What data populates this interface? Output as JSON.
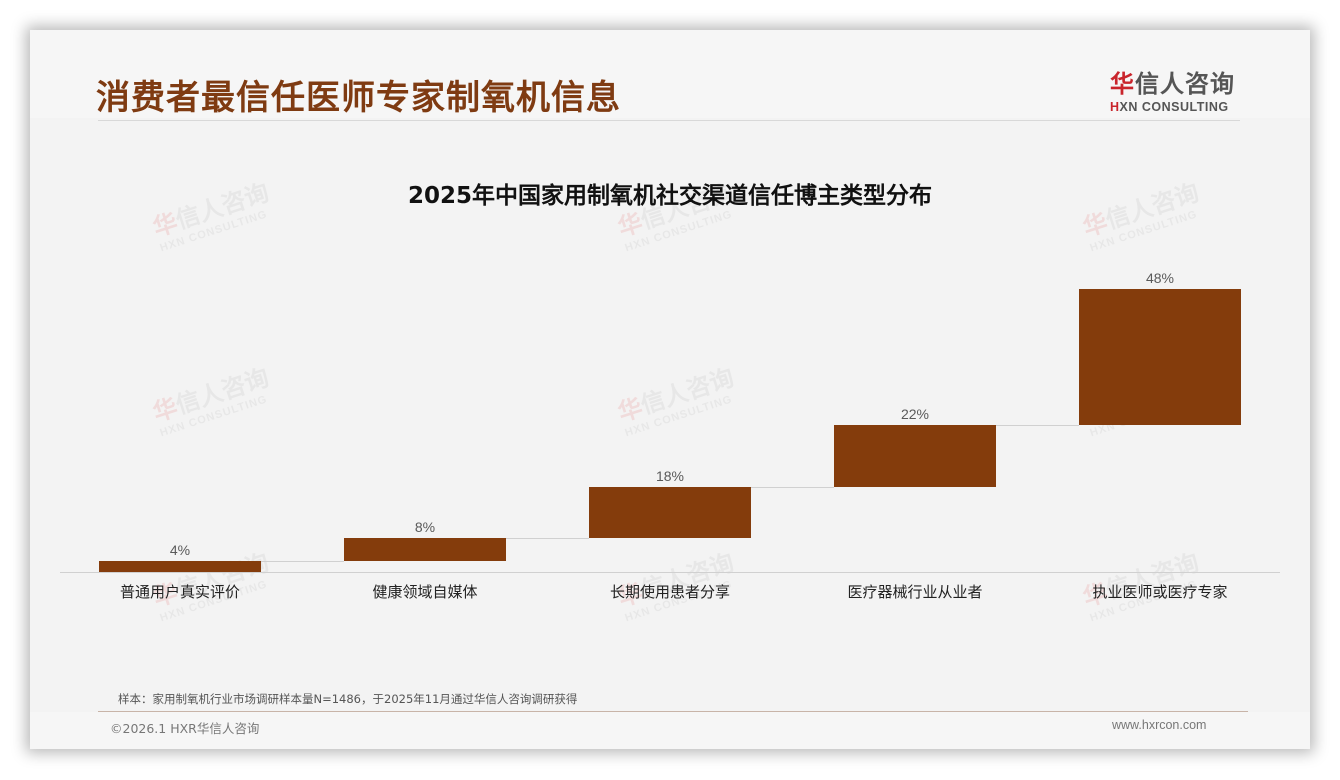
{
  "header": {
    "title": "消费者最信任医师专家制氧机信息",
    "logo_cn_first": "华",
    "logo_cn_rest": "信人咨询",
    "logo_en_first": "H",
    "logo_en_rest": "XN CONSULTING"
  },
  "watermark": {
    "cn_first": "华",
    "cn_rest": "信人咨询",
    "en": "HXN CONSULTING"
  },
  "colors": {
    "title": "#7f3b12",
    "bar": "#843c0c",
    "brand_red": "#c9252c"
  },
  "chart_data": {
    "type": "bar",
    "subtype": "waterfall",
    "title": "2025年中国家用制氧机社交渠道信任博主类型分布",
    "categories": [
      "普通用户真实评价",
      "健康领域自媒体",
      "长期使用患者分享",
      "医疗器械行业从业者",
      "执业医师或医疗专家"
    ],
    "values": [
      4,
      8,
      18,
      22,
      48
    ],
    "labels": [
      "4%",
      "8%",
      "18%",
      "22%",
      "48%"
    ],
    "cumulative_start": [
      0,
      4,
      12,
      30,
      52
    ],
    "cumulative_end": [
      4,
      12,
      30,
      52,
      100
    ],
    "unit": "%",
    "xlabel": "",
    "ylabel": "",
    "ylim": [
      0,
      100
    ],
    "grid": false,
    "legend": "none",
    "bar_color": "#843c0c"
  },
  "footer": {
    "note": "样本：家用制氧机行业市场调研样本量N=1486，于2025年11月通过华信人咨询调研获得",
    "copyright": "©2026.1 HXR华信人咨询",
    "website": "www.hxrcon.com"
  }
}
